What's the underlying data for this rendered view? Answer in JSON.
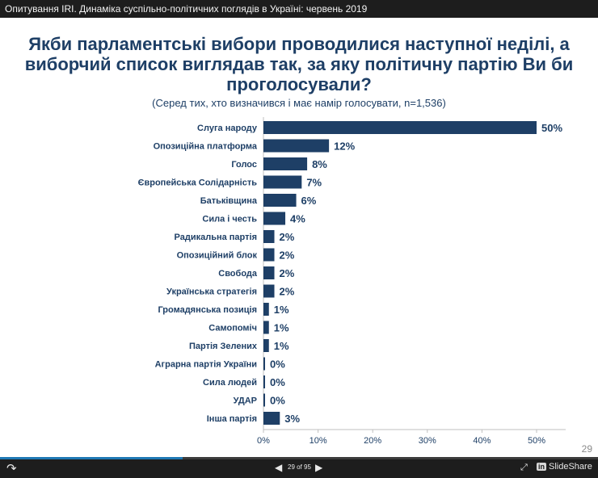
{
  "window": {
    "title": "Опитування IRI. Динаміка суспільно-політичних поглядів в Україні: червень 2019"
  },
  "slide": {
    "heading": "Якби парламентські вибори проводилися наступної неділі, а виборчий список виглядав так, за яку політичну партію Ви би проголосували?",
    "subtitle": "(Серед тих, хто визначився і має намір голосувати, n=1,536)",
    "slide_number": "29"
  },
  "player": {
    "page_label": "29 of 95",
    "progress": 0.305,
    "brand": "SlideShare",
    "brand_badge": "in",
    "icons": [
      "share-icon",
      "prev-arrow-icon",
      "next-arrow-icon",
      "expand-icon",
      "linkedin-icon"
    ]
  },
  "colors": {
    "bar": "#1e3f66",
    "heading": "#1e3f66"
  },
  "chart_data": {
    "type": "bar",
    "orientation": "horizontal",
    "categories": [
      "Слуга народу",
      "Опозиційна платформа",
      "Голос",
      "Європейська Солідарність",
      "Батьківщина",
      "Сила і честь",
      "Радикальна партія",
      "Опозиційний блок",
      "Свобода",
      "Українська стратегія",
      "Громадянська позиція",
      "Самопоміч",
      "Партія Зелених",
      "Аграрна партія України",
      "Сила людей",
      "УДАР",
      "Інша партія"
    ],
    "values": [
      50,
      12,
      8,
      7,
      6,
      4,
      2,
      2,
      2,
      2,
      1,
      1,
      1,
      0,
      0,
      0,
      3
    ],
    "value_labels": [
      "50%",
      "12%",
      "8%",
      "7%",
      "6%",
      "4%",
      "2%",
      "2%",
      "2%",
      "2%",
      "1%",
      "1%",
      "1%",
      "0%",
      "0%",
      "0%",
      "3%"
    ],
    "xlim": [
      0,
      50
    ],
    "xticks": [
      0,
      10,
      20,
      30,
      40,
      50
    ],
    "xtick_labels": [
      "0%",
      "10%",
      "20%",
      "30%",
      "40%",
      "50%"
    ],
    "grid": false
  }
}
